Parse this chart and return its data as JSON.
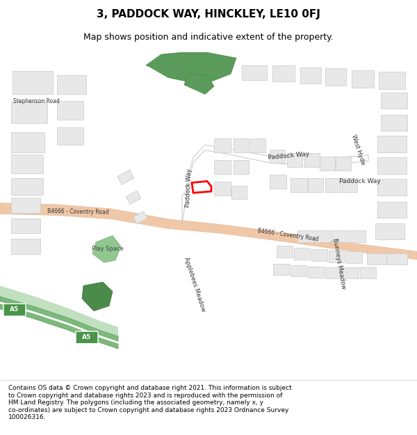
{
  "title": "3, PADDOCK WAY, HINCKLEY, LE10 0FJ",
  "subtitle": "Map shows position and indicative extent of the property.",
  "footer_line1": "Contains OS data © Crown copyright and database right 2021. This information is subject",
  "footer_line2": "to Crown copyright and database rights 2023 and is reproduced with the permission of",
  "footer_line3": "HM Land Registry. The polygons (including the associated geometry, namely x, y",
  "footer_line4": "co-ordinates) are subject to Crown copyright and database rights 2023 Ordnance Survey",
  "footer_line5": "100026316.",
  "bg_color": "#f0eeeb",
  "building_fill": "#e8e8e8",
  "building_outline": "#c8c8c8",
  "road_fill": "#f0c8a8",
  "green_dark": "#5a9a5a",
  "green_light": "#90c890",
  "green_a5": "#7db87d",
  "highlight_red": "#ff0000",
  "white": "#ffffff",
  "text_color": "#333333"
}
